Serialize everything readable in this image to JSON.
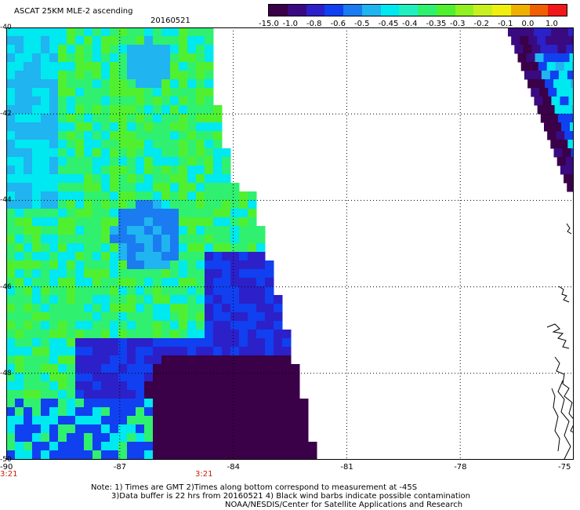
{
  "header": {
    "title": "ASCAT 25KM MLE-2 ascending",
    "date": "20160521"
  },
  "colorbar": {
    "colors": [
      "#3a0048",
      "#3a0a80",
      "#2c20c8",
      "#1040f0",
      "#1a7cf0",
      "#20b4f0",
      "#00e8f0",
      "#20f0c0",
      "#30f070",
      "#50f030",
      "#90f020",
      "#c8f020",
      "#f0f010",
      "#f0b000",
      "#f06000",
      "#f01818"
    ],
    "labels": [
      "-15.0",
      "-1.0",
      "-0.8",
      "-0.6",
      "-0.5",
      "-0.45",
      "-0.4",
      "-0.35",
      "-0.3",
      "-0.2",
      "-0.1",
      "0.0",
      "1.0"
    ]
  },
  "map": {
    "lon_range": [
      -90,
      -75
    ],
    "lat_range": [
      -50,
      -40
    ],
    "lon_ticks": [
      "-90",
      "-87",
      "-84",
      "-81",
      "-78",
      "-75"
    ],
    "lat_ticks": [
      "-40",
      "-42",
      "-44",
      "-46",
      "-48",
      "-50"
    ],
    "grid": true
  },
  "times": {
    "left": "3:21",
    "mid": "3:21"
  },
  "notes": [
    "Note: 1) Times are GMT 2)Times along bottom correspond to measurement at -45S",
    "3)Data buffer is 22 hrs from 20160521 4) Black wind barbs indicate possible contamination",
    "NOAA/NESDIS/Center for Satellite Applications and Research"
  ]
}
